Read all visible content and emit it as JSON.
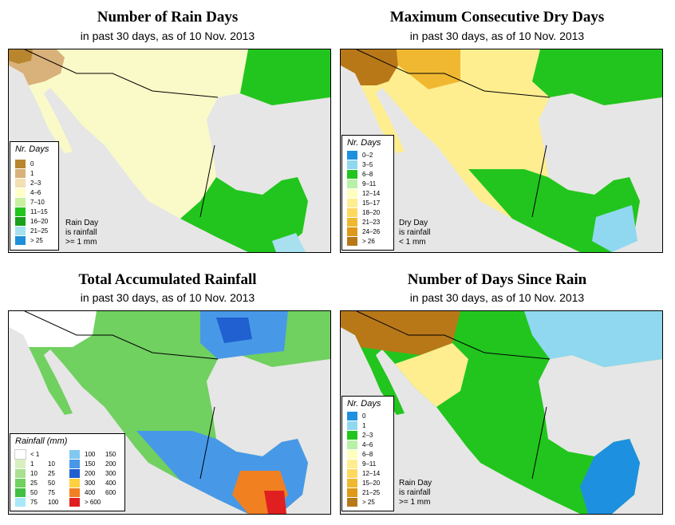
{
  "panels": [
    {
      "title": "Number of Rain Days",
      "subtitle": "in past 30 days, as of  10 Nov. 2013",
      "legend_title": "Nr. Days",
      "legend": [
        {
          "label": "0",
          "color": "#b8862e"
        },
        {
          "label": "1",
          "color": "#d9b17a"
        },
        {
          "label": "2–3",
          "color": "#f3dfb3"
        },
        {
          "label": "4–6",
          "color": "#ffffc8"
        },
        {
          "label": "7–10",
          "color": "#c8f0a0"
        },
        {
          "label": "11–15",
          "color": "#22c51e"
        },
        {
          "label": "16–20",
          "color": "#1aa01a"
        },
        {
          "label": "21–25",
          "color": "#a8e0f0"
        },
        {
          "label": "> 25",
          "color": "#1e8fd8"
        }
      ],
      "note": [
        "Rain Day",
        "is rainfall",
        ">= 1 mm"
      ]
    },
    {
      "title": "Maximum Consecutive Dry Days",
      "subtitle": "in past 30 days, as of  10 Nov. 2013",
      "legend_title": "Nr. Days",
      "legend": [
        {
          "label": "0–2",
          "color": "#1e90e0"
        },
        {
          "label": "3–5",
          "color": "#90d8f0"
        },
        {
          "label": "6–8",
          "color": "#22c51e"
        },
        {
          "label": "9–11",
          "color": "#b8f0a8"
        },
        {
          "label": "12–14",
          "color": "#ffffc0"
        },
        {
          "label": "15–17",
          "color": "#ffee90"
        },
        {
          "label": "18–20",
          "color": "#ffd860"
        },
        {
          "label": "21–23",
          "color": "#f0b830"
        },
        {
          "label": "24–26",
          "color": "#e09818"
        },
        {
          "label": "> 26",
          "color": "#b87818"
        }
      ],
      "note": [
        "Dry Day",
        "is rainfall",
        "< 1 mm"
      ]
    },
    {
      "title": "Total Accumulated Rainfall",
      "subtitle": "in past 30 days, as of  10 Nov. 2013",
      "legend_title": "Rainfall (mm)",
      "legend_left": [
        {
          "lo": "< 1",
          "hi": "",
          "color": "#ffffff"
        },
        {
          "lo": "1",
          "hi": "10",
          "color": "#d8f0c0"
        },
        {
          "lo": "10",
          "hi": "25",
          "color": "#a8e090"
        },
        {
          "lo": "25",
          "hi": "50",
          "color": "#70d060"
        },
        {
          "lo": "50",
          "hi": "75",
          "color": "#40c040"
        },
        {
          "lo": "75",
          "hi": "100",
          "color": "#a8e8f8"
        }
      ],
      "legend_right": [
        {
          "lo": "100",
          "hi": "150",
          "color": "#80c8f0"
        },
        {
          "lo": "150",
          "hi": "200",
          "color": "#4898e8"
        },
        {
          "lo": "200",
          "hi": "300",
          "color": "#2060d0"
        },
        {
          "lo": "300",
          "hi": "400",
          "color": "#ffd040"
        },
        {
          "lo": "400",
          "hi": "600",
          "color": "#f08020"
        },
        {
          "lo": "> 600",
          "hi": "",
          "color": "#e02020"
        }
      ]
    },
    {
      "title": "Number of Days Since Rain",
      "subtitle": "in past 30 days, as of  10 Nov. 2013",
      "legend_title": "Nr. Days",
      "legend": [
        {
          "label": "0",
          "color": "#1e90e0"
        },
        {
          "label": "1",
          "color": "#90d8f0"
        },
        {
          "label": "2–3",
          "color": "#22c51e"
        },
        {
          "label": "4–6",
          "color": "#b8f0a8"
        },
        {
          "label": "6–8",
          "color": "#ffffc0"
        },
        {
          "label": "9–11",
          "color": "#ffee90"
        },
        {
          "label": "12–14",
          "color": "#ffd860"
        },
        {
          "label": "15–20",
          "color": "#f0b830"
        },
        {
          "label": "21–25",
          "color": "#e09818"
        },
        {
          "label": "> 25",
          "color": "#b87818"
        }
      ],
      "note": [
        "Rain Day",
        "is rainfall",
        ">= 1 mm"
      ]
    }
  ],
  "colors": {
    "ocean": "#e6e6e6",
    "border": "#000000"
  }
}
